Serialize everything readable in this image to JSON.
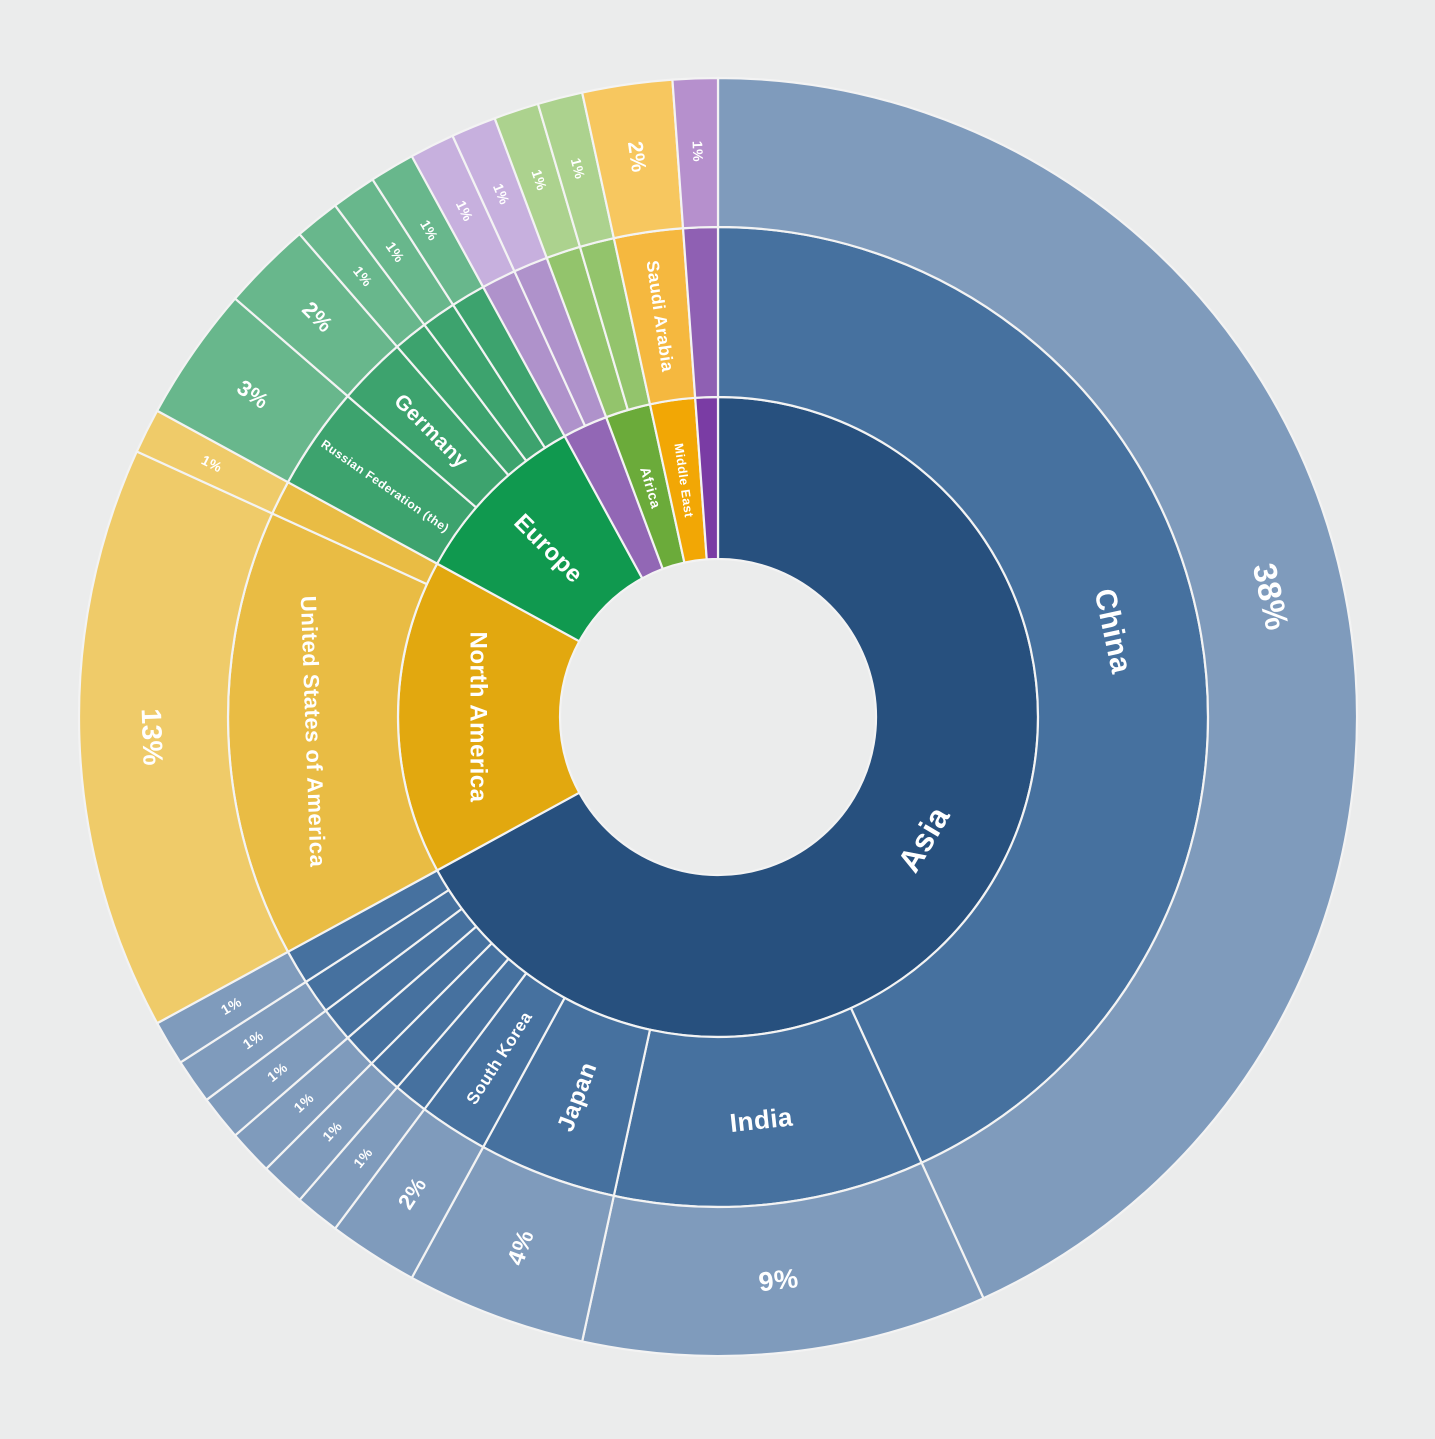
{
  "page": {
    "background_color": "#ebecec",
    "text_color": "#ffffff"
  },
  "chart_data": {
    "type": "sunburst",
    "rings": [
      "region",
      "country",
      "share-percent"
    ],
    "start_angle_deg": 0,
    "direction": "clockwise",
    "total_units": 88,
    "legend_position": "none",
    "grid": false,
    "regions": [
      {
        "label": "Asia",
        "label_size": 32,
        "color_inner": "#27507E",
        "color_middle": "#46719F",
        "color_outer": "#7F9BBC",
        "children": [
          {
            "label": "China",
            "value": 38,
            "pct": "38%",
            "label_size": 30,
            "pct_size": 33
          },
          {
            "label": "India",
            "value": 9,
            "pct": "9%",
            "label_size": 26,
            "pct_size": 27
          },
          {
            "label": "Japan",
            "value": 4,
            "pct": "4%",
            "label_size": 24,
            "pct_size": 24
          },
          {
            "label": "South Korea",
            "value": 2,
            "pct": "2%",
            "label_size": 17,
            "pct_size": 22
          },
          {
            "label": "",
            "value": 1,
            "pct": "1%",
            "label_size": 0,
            "pct_size": 14
          },
          {
            "label": "",
            "value": 1,
            "pct": "1%",
            "label_size": 0,
            "pct_size": 14
          },
          {
            "label": "",
            "value": 1,
            "pct": "1%",
            "label_size": 0,
            "pct_size": 14
          },
          {
            "label": "",
            "value": 1,
            "pct": "1%",
            "label_size": 0,
            "pct_size": 14
          },
          {
            "label": "",
            "value": 1,
            "pct": "1%",
            "label_size": 0,
            "pct_size": 14
          },
          {
            "label": "",
            "value": 1,
            "pct": "1%",
            "label_size": 0,
            "pct_size": 14
          }
        ]
      },
      {
        "label": "North America",
        "label_size": 24,
        "color_inner": "#E2A80F",
        "color_middle": "#E9BC44",
        "color_outer": "#EFCB69",
        "children": [
          {
            "label": "United States of America",
            "value": 13,
            "pct": "13%",
            "label_size": 22,
            "pct_size": 28
          },
          {
            "label": "",
            "value": 1,
            "pct": "1%",
            "label_size": 0,
            "pct_size": 14
          }
        ]
      },
      {
        "label": "Europe",
        "label_size": 24,
        "color_inner": "#10994F",
        "color_middle": "#3DA36E",
        "color_outer": "#68B78C",
        "children": [
          {
            "label": "Russian Federation (the)",
            "value": 3,
            "pct": "3%",
            "label_size": 12,
            "pct_size": 22
          },
          {
            "label": "Germany",
            "value": 2,
            "pct": "2%",
            "label_size": 21,
            "pct_size": 22
          },
          {
            "label": "",
            "value": 1,
            "pct": "1%",
            "label_size": 0,
            "pct_size": 14
          },
          {
            "label": "",
            "value": 1,
            "pct": "1%",
            "label_size": 0,
            "pct_size": 14
          },
          {
            "label": "",
            "value": 1,
            "pct": "1%",
            "label_size": 0,
            "pct_size": 14
          }
        ]
      },
      {
        "label": "",
        "label_size": 0,
        "color_inner": "#9267B5",
        "color_middle": "#AF92CB",
        "color_outer": "#C7B0DE",
        "children": [
          {
            "label": "",
            "value": 1,
            "pct": "1%",
            "label_size": 0,
            "pct_size": 14
          },
          {
            "label": "",
            "value": 1,
            "pct": "1%",
            "label_size": 0,
            "pct_size": 14
          }
        ]
      },
      {
        "label": "Africa",
        "label_size": 14,
        "color_inner": "#6BAB3A",
        "color_middle": "#93C46C",
        "color_outer": "#ACD28E",
        "children": [
          {
            "label": "",
            "value": 1,
            "pct": "1%",
            "label_size": 0,
            "pct_size": 14
          },
          {
            "label": "",
            "value": 1,
            "pct": "1%",
            "label_size": 0,
            "pct_size": 14
          }
        ]
      },
      {
        "label": "Middle East",
        "label_size": 12.5,
        "color_inner": "#F2A705",
        "color_middle": "#F5B83F",
        "color_outer": "#F7C75F",
        "children": [
          {
            "label": "Saudi Arabia",
            "value": 2,
            "pct": "2%",
            "label_size": 17.5,
            "pct_size": 21
          }
        ]
      },
      {
        "label": "",
        "label_size": 0,
        "color_inner": "#7A3CA4",
        "color_middle": "#8F60B3",
        "color_outer": "#B690CD",
        "children": [
          {
            "label": "",
            "value": 1,
            "pct": "1%",
            "label_size": 0,
            "pct_size": 14
          }
        ]
      }
    ]
  }
}
